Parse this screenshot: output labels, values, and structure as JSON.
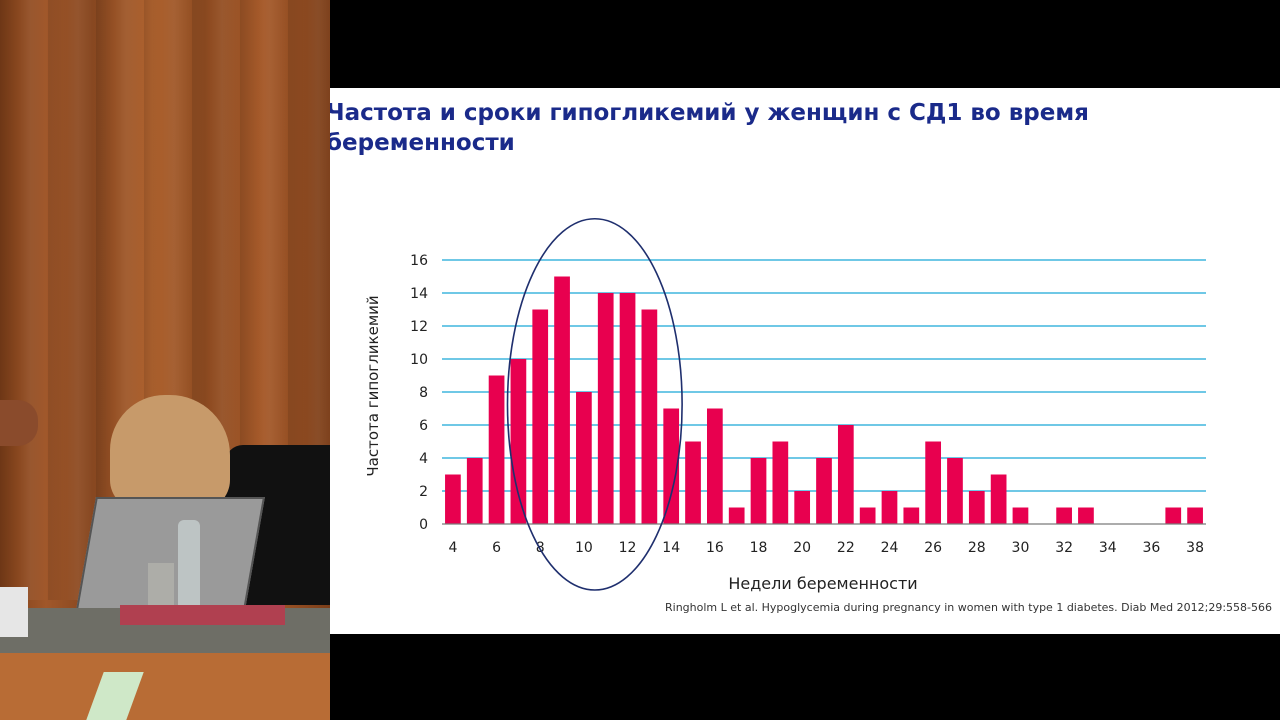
{
  "slide": {
    "title": "Частота и сроки гипогликемий у женщин с СД1 во время беременности",
    "citation": "Ringholm L et al. Hypoglycemia during pregnancy in women with type 1 diabetes. Diab Med 2012;29:558-566"
  },
  "colors": {
    "title": "#1a2a8a",
    "bar": "#e8004f",
    "grid": "#19a7d6",
    "ellipse": "#1f2f6e"
  },
  "chart_data": {
    "type": "bar",
    "xlabel": "Недели беременности",
    "ylabel": "Частота гипогликемий",
    "x": [
      4,
      5,
      6,
      7,
      8,
      9,
      10,
      11,
      12,
      13,
      14,
      15,
      16,
      17,
      18,
      19,
      20,
      21,
      22,
      23,
      24,
      25,
      26,
      27,
      28,
      29,
      30,
      31,
      32,
      33,
      34,
      35,
      36,
      37,
      38
    ],
    "values": [
      3,
      4,
      9,
      10,
      13,
      15,
      8,
      14,
      14,
      13,
      7,
      5,
      7,
      1,
      4,
      5,
      2,
      4,
      6,
      1,
      2,
      1,
      5,
      4,
      2,
      3,
      1,
      0,
      1,
      1,
      0,
      0,
      0,
      1,
      1
    ],
    "x_tick_labels": [
      "4",
      "6",
      "8",
      "10",
      "12",
      "14",
      "16",
      "18",
      "20",
      "22",
      "24",
      "26",
      "28",
      "30",
      "32",
      "34",
      "36",
      "38"
    ],
    "y_tick_labels": [
      "0",
      "2",
      "4",
      "6",
      "8",
      "10",
      "12",
      "14",
      "16"
    ],
    "ylim": [
      0,
      16
    ],
    "grid": true,
    "annotation": {
      "type": "ellipse",
      "x_range": [
        7,
        14
      ],
      "y_range": [
        -4,
        18.5
      ]
    }
  }
}
